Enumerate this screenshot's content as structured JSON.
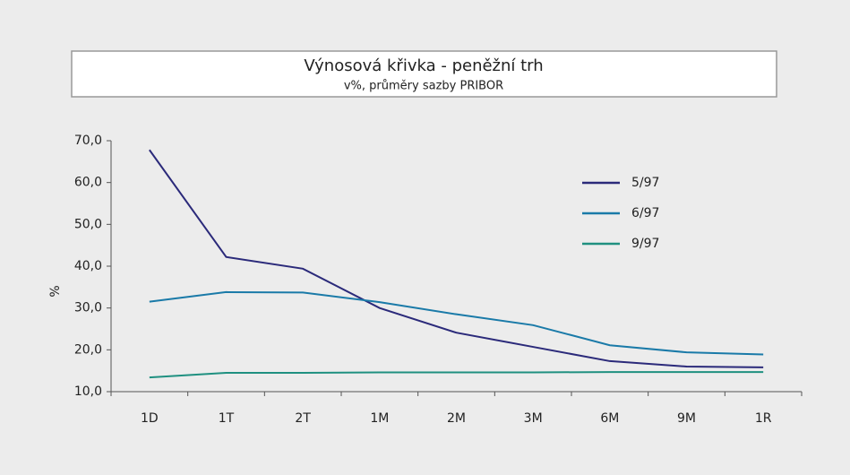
{
  "chart_data": {
    "type": "line",
    "title": "Výnosová křivka - peněžní trh",
    "subtitle": "v%, průměry sazby PRIBOR",
    "y_label": "%",
    "categories": [
      "1D",
      "1T",
      "2T",
      "1M",
      "2M",
      "3M",
      "6M",
      "9M",
      "1R"
    ],
    "series": [
      {
        "name": "5/97",
        "color": "#2b2a7a",
        "values": [
          67.8,
          42.2,
          39.4,
          30.0,
          24.1,
          20.7,
          17.3,
          16.0,
          15.8
        ]
      },
      {
        "name": "6/97",
        "color": "#1a7aa8",
        "values": [
          31.5,
          33.8,
          33.7,
          31.4,
          28.5,
          25.9,
          21.1,
          19.4,
          18.9
        ]
      },
      {
        "name": "9/97",
        "color": "#1f9080",
        "values": [
          13.4,
          14.5,
          14.5,
          14.6,
          14.6,
          14.6,
          14.7,
          14.7,
          14.7
        ]
      }
    ],
    "ylim": [
      10,
      70
    ],
    "yticks": [
      {
        "value": 10,
        "label": "10,0"
      },
      {
        "value": 20,
        "label": "20,0"
      },
      {
        "value": 30,
        "label": "30,0"
      },
      {
        "value": 40,
        "label": "40,0"
      },
      {
        "value": 50,
        "label": "50,0"
      },
      {
        "value": 60,
        "label": "60,0"
      },
      {
        "value": 70,
        "label": "70,0"
      }
    ],
    "grid": false
  }
}
